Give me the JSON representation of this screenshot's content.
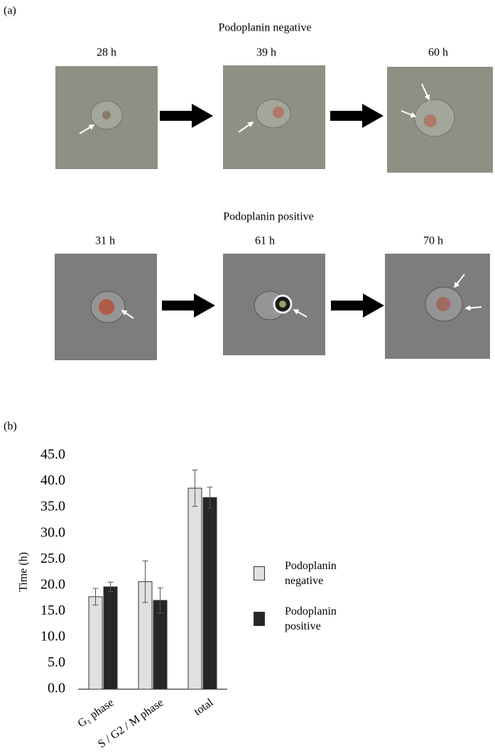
{
  "panel_a": {
    "label": "(a)",
    "rows": [
      {
        "title": "Podoplanin negative",
        "times": [
          "28 h",
          "39 h",
          "60 h"
        ]
      },
      {
        "title": "Podoplanin positive",
        "times": [
          "31 h",
          "61 h",
          "70 h"
        ]
      }
    ]
  },
  "chart_data": {
    "type": "bar",
    "panel_label": "(b)",
    "y_label": "Time (h)",
    "categories": [
      "G₁ phase",
      "S / G2 / M phase",
      "total"
    ],
    "series": [
      {
        "name": "Podoplanin negative",
        "color": "#e0e0e0",
        "values": [
          17.8,
          20.7,
          38.7
        ],
        "errors": [
          1.6,
          4.0,
          3.5
        ]
      },
      {
        "name": "Podoplanin positive",
        "color": "#262626",
        "values": [
          19.7,
          17.1,
          36.9
        ],
        "errors": [
          0.9,
          2.4,
          2.0
        ]
      }
    ],
    "ylim": [
      0,
      45
    ],
    "yticks": [
      {
        "value": 0,
        "label": "0.0"
      },
      {
        "value": 5,
        "label": "5.0"
      },
      {
        "value": 10,
        "label": "10.0"
      },
      {
        "value": 15,
        "label": "15.0"
      },
      {
        "value": 20,
        "label": "20.0"
      },
      {
        "value": 25,
        "label": "25.0"
      },
      {
        "value": 30,
        "label": "30.0"
      },
      {
        "value": 35,
        "label": "35.0"
      },
      {
        "value": 40,
        "label": "40.0"
      },
      {
        "value": 45,
        "label": "45.0"
      }
    ]
  }
}
